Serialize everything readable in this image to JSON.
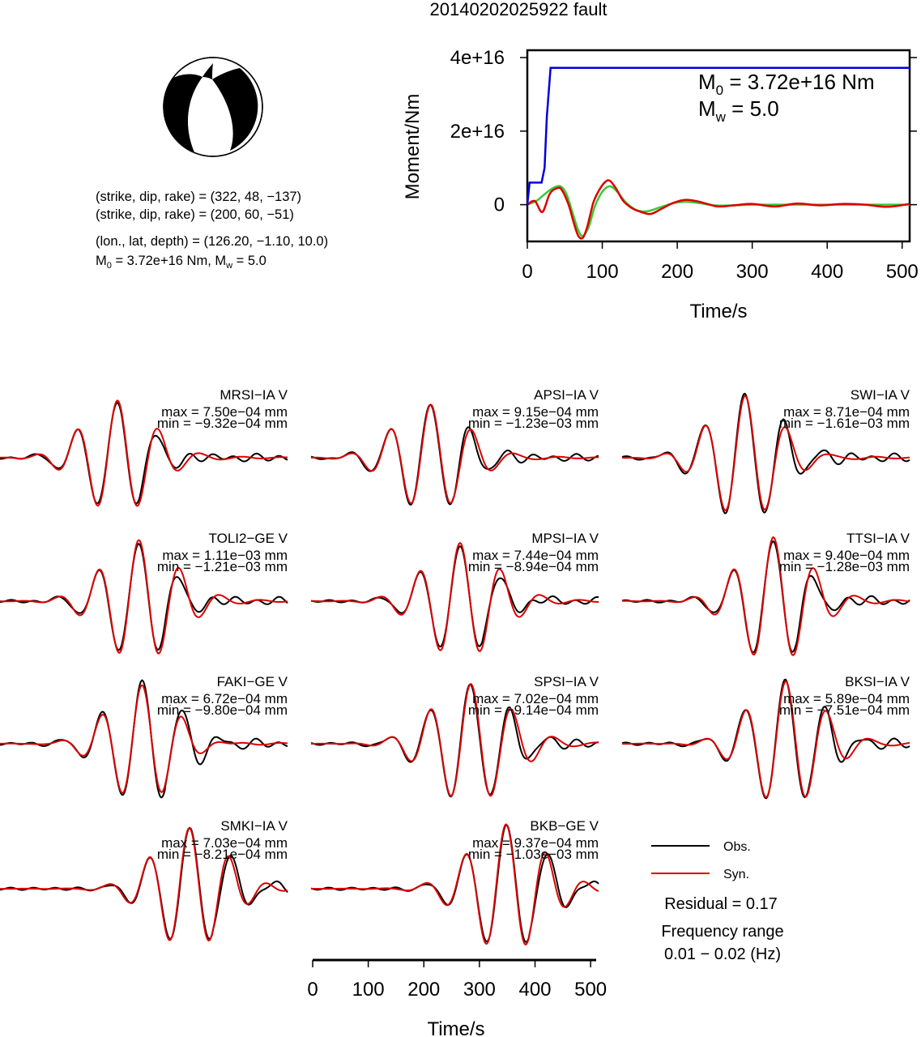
{
  "title": "20140202025922 fault",
  "beachball": {
    "planes": [
      {
        "strike": 322,
        "dip": 48,
        "rake": -137
      },
      {
        "strike": 200,
        "dip": 60,
        "rake": -51
      }
    ],
    "plane1_text": "(strike, dip, rake) = (322, 48, −137)",
    "plane2_text": "(strike, dip, rake) = (200, 60, −51)",
    "location_text": "(lon., lat, depth) = (126.20, −1.10, 10.0)",
    "moment_prefix": "M",
    "moment_sub": "0",
    "moment_rest": " = 3.72e+16 Nm, M",
    "mw_sub": "w",
    "mw_rest": " = 5.0"
  },
  "moment_panel": {
    "ylabel": "Moment/Nm",
    "xlabel": "Time/s",
    "m0_prefix": "M",
    "m0_sub": "0",
    "m0_rest": " = 3.72e+16 Nm",
    "mw_prefix": "M",
    "mw_sub": "w",
    "mw_rest": " = 5.0"
  },
  "chart_data": [
    {
      "type": "line",
      "title": "20140202025922 fault",
      "xlabel": "Time/s",
      "ylabel": "Moment/Nm",
      "xlim": [
        0,
        510
      ],
      "ylim": [
        -1e+16,
        4.2e+16
      ],
      "xticks": [
        0,
        100,
        200,
        300,
        400,
        500
      ],
      "xtick_labels": [
        "0",
        "100",
        "200",
        "300",
        "400",
        "500"
      ],
      "yticks": [
        0,
        2e+16,
        4e+16
      ],
      "ytick_labels": [
        "0",
        "2e+16",
        "4e+16"
      ],
      "series": [
        {
          "color": "#0000dd",
          "style": "cumulative",
          "x": [
            0,
            3,
            6,
            19,
            23,
            26,
            31,
            36,
            510
          ],
          "y": [
            0,
            6000000000000000.0,
            6000000000000000.0,
            6000000000000000.0,
            1e+16,
            2.4e+16,
            3.72e+16,
            3.72e+16,
            3.72e+16
          ]
        },
        {
          "color": "#dd0000",
          "style": "moment-rate",
          "x": [
            0,
            10,
            20,
            30,
            40,
            46,
            55,
            62,
            68,
            74,
            80,
            88,
            96,
            104,
            110,
            118,
            128,
            140,
            152,
            165,
            180,
            195,
            210,
            225,
            240,
            255,
            275,
            300,
            330,
            360,
            390,
            420,
            450,
            480,
            510
          ],
          "y": [
            0,
            1000000000000000.0,
            -2000000000000000.0,
            3000000000000000.0,
            4500000000000000.0,
            4000000000000000.0,
            0,
            -5000000000000000.0,
            -8500000000000000.0,
            -9000000000000000.0,
            -6000000000000000.0,
            500000000000000.0,
            4000000000000000.0,
            6200000000000000.0,
            6500000000000000.0,
            4500000000000000.0,
            1000000000000000.0,
            -1000000000000000.0,
            -2000000000000000.0,
            -2500000000000000.0,
            -1000000000000000.0,
            500000000000000.0,
            1300000000000000.0,
            1000000000000000.0,
            200000000000000.0,
            -500000000000000.0,
            -200000000000000.0,
            200000000000000.0,
            -500000000000000.0,
            300000000000000.0,
            -200000000000000.0,
            200000000000000.0,
            0,
            -600000000000000.0,
            200000000000000.0
          ]
        },
        {
          "color": "#33cc33",
          "style": "moment-rate-smooth",
          "x": [
            0,
            12,
            24,
            34,
            44,
            52,
            60,
            68,
            74,
            82,
            90,
            100,
            110,
            120,
            132,
            146,
            160,
            176,
            195,
            212,
            230,
            250,
            275,
            300,
            340,
            380,
            420,
            470,
            510
          ],
          "y": [
            0,
            1000000000000000.0,
            3000000000000000.0,
            4500000000000000.0,
            5000000000000000.0,
            3000000000000000.0,
            -2000000000000000.0,
            -7000000000000000.0,
            -8500000000000000.0,
            -6000000000000000.0,
            -500000000000000.0,
            3500000000000000.0,
            5000000000000000.0,
            3500000000000000.0,
            500000000000000.0,
            -1500000000000000.0,
            -1800000000000000.0,
            -800000000000000.0,
            400000000000000.0,
            800000000000000.0,
            400000000000000.0,
            -200000000000000.0,
            -200000000000000.0,
            0,
            0,
            0,
            0,
            0,
            0
          ]
        }
      ]
    },
    {
      "type": "line",
      "style": "waveform-grid",
      "xlabel": "Time/s",
      "xlim": [
        0,
        510
      ],
      "xticks": [
        0,
        100,
        200,
        300,
        400,
        500
      ],
      "xtick_labels": [
        "0",
        "100",
        "200",
        "300",
        "400",
        "500"
      ],
      "legend": [
        {
          "label": "Obs.",
          "color": "#000000"
        },
        {
          "label": "Syn.",
          "color": "#dd0000"
        }
      ],
      "residual_text": "Residual = 0.17",
      "freq_title": "Frequency range",
      "freq_text": "0.01 − 0.02 (Hz)",
      "stations": [
        {
          "name": "MRSI−IA V",
          "max": "max = 7.50e−04 mm",
          "min": "min = −9.32e−04 mm",
          "t0": 208,
          "amp": 0.9,
          "sp": 60,
          "seed": 1
        },
        {
          "name": "APSI−IA V",
          "max": "max = 9.15e−04 mm",
          "min": "min = −1.23e−03 mm",
          "t0": 212,
          "amp": 0.85,
          "sp": 64,
          "seed": 2
        },
        {
          "name": "SWI−IA V",
          "max": "max = 8.71e−04 mm",
          "min": "min = −1.61e−03 mm",
          "t0": 218,
          "amp": 1.0,
          "sp": 62,
          "seed": 3
        },
        {
          "name": "TOLI2−GE V",
          "max": "max = 1.11e−03 mm",
          "min": "min = −1.21e−03 mm",
          "t0": 246,
          "amp": 0.95,
          "sp": 62,
          "seed": 4
        },
        {
          "name": "MPSI−IA V",
          "max": "max = 7.44e−04 mm",
          "min": "min = −8.94e−04 mm",
          "t0": 264,
          "amp": 0.9,
          "sp": 62,
          "seed": 5
        },
        {
          "name": "TTSI−IA V",
          "max": "max = 9.40e−04 mm",
          "min": "min = −1.28e−03 mm",
          "t0": 268,
          "amp": 1.0,
          "sp": 60,
          "seed": 6
        },
        {
          "name": "FAKI−GE V",
          "max": "max = 6.72e−04 mm",
          "min": "min = −9.80e−04 mm",
          "t0": 252,
          "amp": 0.95,
          "sp": 60,
          "seed": 7
        },
        {
          "name": "SPSI−IA V",
          "max": "max = 7.02e−04 mm",
          "min": "min = −9.14e−04 mm",
          "t0": 283,
          "amp": 0.95,
          "sp": 68,
          "seed": 8
        },
        {
          "name": "BKSI−IA V",
          "max": "max = 5.89e−04 mm",
          "min": "min = −7.51e−04 mm",
          "t0": 290,
          "amp": 1.0,
          "sp": 64,
          "seed": 9
        },
        {
          "name": "SMKI−IA V",
          "max": "max = 7.03e−04 mm",
          "min": "min = −8.21e−04 mm",
          "t0": 336,
          "amp": 0.95,
          "sp": 62,
          "seed": 10
        },
        {
          "name": "BKB−GE V",
          "max": "max = 9.37e−04 mm",
          "min": "min = −1.03e−03 mm",
          "t0": 346,
          "amp": 1.0,
          "sp": 64,
          "seed": 11
        }
      ]
    }
  ]
}
